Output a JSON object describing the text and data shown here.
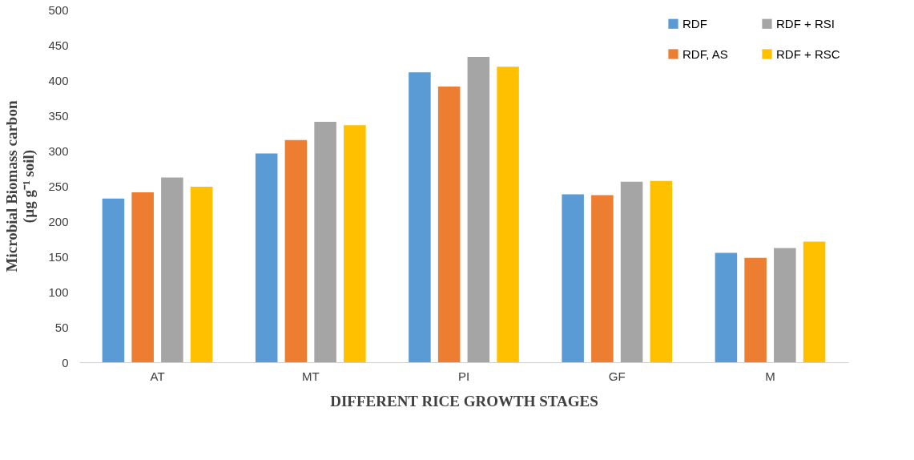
{
  "chart_data": {
    "type": "bar",
    "xlabel": "DIFFERENT RICE GROWTH STAGES",
    "ylabel": "Microbial Biomass carbon\n(µg g⁻¹ soil)",
    "categories": [
      "AT",
      "MT",
      "PI",
      "GF",
      "M"
    ],
    "series": [
      {
        "name": "RDF",
        "color": "#5b9bd5",
        "values": [
          232,
          296,
          411,
          238,
          155
        ]
      },
      {
        "name": "RDF, AS",
        "color": "#ed7d31",
        "values": [
          241,
          315,
          391,
          237,
          148
        ]
      },
      {
        "name": "RDF + RSI",
        "color": "#a5a5a5",
        "values": [
          262,
          341,
          433,
          256,
          162
        ]
      },
      {
        "name": "RDF + RSC",
        "color": "#ffc000",
        "values": [
          249,
          336,
          419,
          257,
          171
        ]
      }
    ],
    "ylim": [
      0,
      500
    ],
    "yticks": [
      0,
      50,
      100,
      150,
      200,
      250,
      300,
      350,
      400,
      450,
      500
    ],
    "grid": false,
    "legend": "top right"
  }
}
